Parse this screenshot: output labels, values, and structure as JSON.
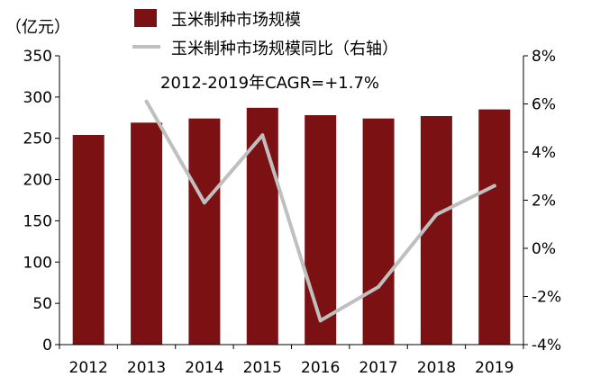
{
  "chart_data": {
    "type": "bar",
    "categories": [
      "2012",
      "2013",
      "2014",
      "2015",
      "2016",
      "2017",
      "2018",
      "2019"
    ],
    "series": [
      {
        "name": "玉米制种市场规模",
        "type": "bar",
        "axis": "left",
        "color": "#7B1113",
        "values": [
          254,
          269,
          274,
          287,
          278,
          274,
          277,
          285
        ]
      },
      {
        "name": "玉米制种市场规模同比（右轴）",
        "type": "line",
        "axis": "right",
        "color": "#BFBFBF",
        "values": [
          null,
          6.1,
          1.9,
          4.7,
          -3.0,
          -1.6,
          1.4,
          2.6
        ]
      }
    ],
    "yleft": {
      "unit_label": "（亿元）",
      "ylim": [
        0,
        350
      ],
      "ticks": [
        0,
        50,
        100,
        150,
        200,
        250,
        300,
        350
      ]
    },
    "yright": {
      "ylim": [
        -4,
        8
      ],
      "ticks": [
        "-4%",
        "-2%",
        "0%",
        "2%",
        "4%",
        "6%",
        "8%"
      ]
    },
    "annotation": "2012-2019年CAGR=+1.7%",
    "legend_position": "top",
    "grid": false
  }
}
